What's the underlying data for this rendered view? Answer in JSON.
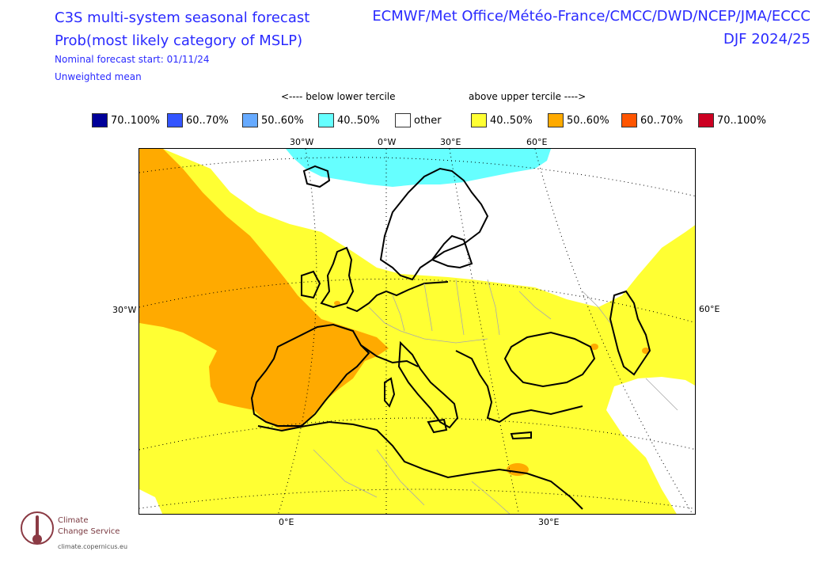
{
  "header": {
    "title_line1": "C3S multi-system seasonal forecast",
    "title_line2": "Prob(most likely category of MSLP)",
    "forecast_start": "Nominal forecast start: 01/11/24",
    "weighting": "Unweighted mean",
    "centers": "ECMWF/Met Office/Météo-France/CMCC/DWD/NCEP/JMA/ECCC",
    "season": "DJF 2024/25"
  },
  "legend": {
    "below_caption": "<---- below lower tercile",
    "above_caption": "above upper tercile ---->",
    "items": [
      {
        "label": "70..100%",
        "color": "#000099"
      },
      {
        "label": "60..70%",
        "color": "#3355ff"
      },
      {
        "label": "50..60%",
        "color": "#66aaff"
      },
      {
        "label": "40..50%",
        "color": "#66ffff"
      },
      {
        "label": "other",
        "color": "#ffffff"
      },
      {
        "label": "40..50%",
        "color": "#ffff33"
      },
      {
        "label": "50..60%",
        "color": "#ffaa00"
      },
      {
        "label": "60..70%",
        "color": "#ff5500"
      },
      {
        "label": "70..100%",
        "color": "#cc0022"
      }
    ]
  },
  "axes": {
    "top_labels": [
      "30°W",
      "0°W",
      "30°E",
      "60°E"
    ],
    "bottom_labels": [
      "0°E",
      "30°E"
    ],
    "left_label": "30°W",
    "right_label": "60°E"
  },
  "branding": {
    "line1": "Climate",
    "line2": "Change Service",
    "url": "climate.copernicus.eu"
  },
  "colors": {
    "title": "#2a2aff",
    "yellow": "#ffff33",
    "orange": "#ffaa00",
    "cyan": "#66ffff"
  }
}
